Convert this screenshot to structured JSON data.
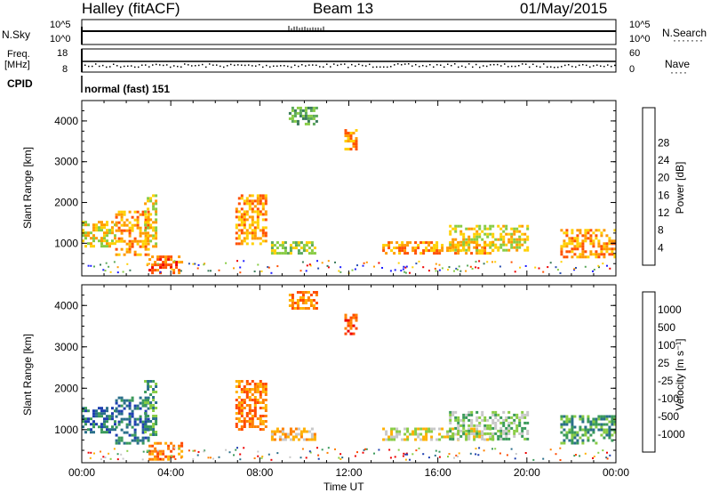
{
  "header": {
    "station": "Halley (fitACF)",
    "beam": "Beam 13",
    "date": "01/May/2015"
  },
  "strips": {
    "nsky": {
      "label": "N.Sky",
      "ytick_top": "10^5",
      "ytick_bottom": "10^0",
      "right_label": "N.Search",
      "right_ytick_top": "10^5",
      "right_ytick_bottom": "10^0",
      "dots_right": "·······"
    },
    "freq": {
      "label_line1": "Freq.",
      "label_line2": "[MHz]",
      "ytick_top": "18",
      "ytick_bottom": "8",
      "right_label": "Nave",
      "right_ytick_top": "60",
      "right_ytick_bottom": "0",
      "dots_right": "····"
    },
    "cpid": {
      "label": "CPID",
      "value": "normal (fast) 151"
    }
  },
  "colors": {
    "power_scale": [
      "#1e1eff",
      "#2a4fb0",
      "#3a7a5a",
      "#5aa85a",
      "#88cc44",
      "#ffd000",
      "#ff9a00",
      "#ff5000",
      "#ee0000"
    ],
    "velocity_scale": [
      "#ee0000",
      "#ff4a00",
      "#ff8000",
      "#ffb000",
      "#c8c8c8",
      "#88cc44",
      "#3a9a5a",
      "#2a6f8a",
      "#1e3fb0"
    ]
  },
  "chart_data": [
    {
      "type": "heatmap",
      "name": "power-panel",
      "xlabel": "",
      "ylabel": "Slant Range [km]",
      "x_range_hours": [
        0,
        24
      ],
      "ylim": [
        200,
        4500
      ],
      "yticks": [
        "1000",
        "2000",
        "3000",
        "4000"
      ],
      "colorbar_label": "Power [dB]",
      "colorbar_ticks": [
        "4",
        "8",
        "12",
        "16",
        "20",
        "24",
        "28"
      ],
      "echo_regions": [
        {
          "t0": 0.0,
          "t1": 1.5,
          "r0": 950,
          "r1": 1550,
          "level": 5
        },
        {
          "t0": 1.5,
          "t1": 3.0,
          "r0": 700,
          "r1": 1800,
          "level": 6
        },
        {
          "t0": 2.8,
          "t1": 3.3,
          "r0": 900,
          "r1": 2200,
          "level": 5
        },
        {
          "t0": 3.0,
          "t1": 4.5,
          "r0": 250,
          "r1": 700,
          "level": 7
        },
        {
          "t0": 6.9,
          "t1": 8.3,
          "r0": 1000,
          "r1": 2200,
          "level": 6
        },
        {
          "t0": 8.5,
          "t1": 10.5,
          "r0": 750,
          "r1": 1050,
          "level": 4
        },
        {
          "t0": 9.3,
          "t1": 10.5,
          "r0": 3900,
          "r1": 4350,
          "level": 3
        },
        {
          "t0": 11.8,
          "t1": 12.3,
          "r0": 3300,
          "r1": 3800,
          "level": 6
        },
        {
          "t0": 13.5,
          "t1": 18.5,
          "r0": 750,
          "r1": 1050,
          "level": 6
        },
        {
          "t0": 16.5,
          "t1": 20.0,
          "r0": 800,
          "r1": 1450,
          "level": 5
        },
        {
          "t0": 21.5,
          "t1": 24.0,
          "r0": 650,
          "r1": 1350,
          "level": 6
        }
      ]
    },
    {
      "type": "heatmap",
      "name": "velocity-panel",
      "xlabel": "Time UT",
      "ylabel": "Slant Range [km]",
      "x_range_hours": [
        0,
        24
      ],
      "xticks": [
        "00:00",
        "04:00",
        "08:00",
        "12:00",
        "16:00",
        "20:00",
        "00:00"
      ],
      "ylim": [
        200,
        4500
      ],
      "yticks": [
        "1000",
        "2000",
        "3000",
        "4000"
      ],
      "colorbar_label": "Velocity [m s⁻¹]",
      "colorbar_ticks": [
        "1000",
        "500",
        "100",
        "25",
        "-25",
        "-100",
        "-500",
        "-1000"
      ],
      "echo_regions": [
        {
          "t0": 0.0,
          "t1": 1.5,
          "r0": 950,
          "r1": 1550,
          "level": 7
        },
        {
          "t0": 1.5,
          "t1": 3.0,
          "r0": 700,
          "r1": 1800,
          "level": 7
        },
        {
          "t0": 2.8,
          "t1": 3.3,
          "r0": 900,
          "r1": 2200,
          "level": 6
        },
        {
          "t0": 3.0,
          "t1": 4.5,
          "r0": 250,
          "r1": 700,
          "level": 2
        },
        {
          "t0": 6.9,
          "t1": 8.3,
          "r0": 1000,
          "r1": 2200,
          "level": 2
        },
        {
          "t0": 8.5,
          "t1": 10.5,
          "r0": 750,
          "r1": 1050,
          "level": 3
        },
        {
          "t0": 9.3,
          "t1": 10.5,
          "r0": 3900,
          "r1": 4350,
          "level": 2
        },
        {
          "t0": 11.8,
          "t1": 12.3,
          "r0": 3300,
          "r1": 3800,
          "level": 1
        },
        {
          "t0": 13.5,
          "t1": 18.5,
          "r0": 750,
          "r1": 1050,
          "level": 4
        },
        {
          "t0": 16.5,
          "t1": 20.0,
          "r0": 800,
          "r1": 1450,
          "level": 5
        },
        {
          "t0": 21.5,
          "t1": 24.0,
          "r0": 650,
          "r1": 1350,
          "level": 6
        }
      ]
    }
  ]
}
